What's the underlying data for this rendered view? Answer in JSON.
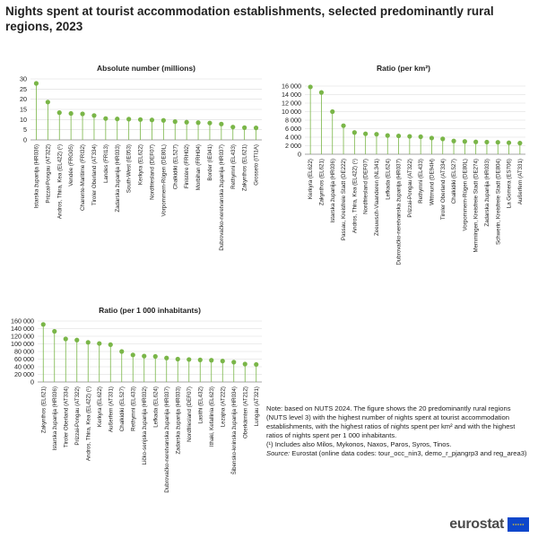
{
  "page": {
    "title": "Nights spent at tourist accommodation establishments, selected predominantly rural regions, 2023"
  },
  "colors": {
    "marker": "#7ab648",
    "stem": "#7ab648"
  },
  "chart_data": [
    {
      "type": "lollipop",
      "title": "Absolute number (millions)",
      "ylim": [
        0,
        30
      ],
      "yticks": [
        0,
        5,
        10,
        15,
        20,
        25,
        30
      ],
      "ytick_labels": [
        "0",
        "5",
        "10",
        "15",
        "20",
        "25",
        "30"
      ],
      "categories": [
        "Istarska županija (HR036)",
        "Prizzai-Pongau (AT322)",
        "Andros, Thira, Kea (EL422) (¹)",
        "Vendée (FRG05)",
        "Charente-Maritime (FRI32)",
        "Tiroler Oberland (AT334)",
        "Landes (FRI13)",
        "Zadarska županija (HR033)",
        "South-West (IE053)",
        "Kerkyra (EL622)",
        "Nordfriesland (DEF07)",
        "Vorpommern-Rügen (DE80L)",
        "Chalkidiki (EL527)",
        "Finistère (FRH02)",
        "Morbihan (FRH04)",
        "Border (IE041)",
        "Dubrovačko-neretvanska županija (HR037)",
        "Rethymni (EL433)",
        "Zakynthos (EL621)",
        "Grosseto (ITI1A)"
      ],
      "values": [
        27.8,
        18.6,
        13.4,
        13.0,
        12.8,
        12.0,
        10.5,
        10.3,
        10.2,
        10.0,
        9.8,
        9.6,
        9.0,
        8.7,
        8.5,
        8.3,
        7.8,
        6.3,
        6.0,
        5.9
      ]
    },
    {
      "type": "lollipop",
      "title": "Ratio (per km²)",
      "ylim": [
        0,
        16000
      ],
      "yticks": [
        0,
        2000,
        4000,
        6000,
        8000,
        10000,
        12000,
        14000,
        16000
      ],
      "ytick_labels": [
        "0",
        "2 000",
        "4 000",
        "6 000",
        "8 000",
        "10 000",
        "12 000",
        "14 000",
        "16 000"
      ],
      "categories": [
        "Kerkyra (EL622)",
        "Zakynthos (EL621)",
        "Istarska županija (HR036)",
        "Passau, Kreisfreie Stadt (DE222)",
        "Andros, Thira, Kea (EL422) (¹)",
        "Nordfriesland (DEF07)",
        "Zeeuwsch-Vlaanderen (NL341)",
        "Lefkada (EL624)",
        "Dubrovačko-neretvanska županija (HR037)",
        "Prizzai-Pongau (AT322)",
        "Rethymni (EL433)",
        "Wittmund (DE94H)",
        "Tiroler Oberland (AT334)",
        "Chalkidiki (EL527)",
        "Vorpommern-Rügen (DE80L)",
        "Memmingen, Kreisfreie Stadt (DE274)",
        "Zadarska županija (HR033)",
        "Schwerin, Kreisfreie Stadt (DE804)",
        "La Gomera (ES706)",
        "Außerfern (AT331)"
      ],
      "values": [
        15800,
        14500,
        10000,
        6700,
        5100,
        4800,
        4700,
        4400,
        4300,
        4200,
        4100,
        3800,
        3600,
        3100,
        3000,
        2900,
        2850,
        2800,
        2700,
        2600
      ]
    },
    {
      "type": "lollipop",
      "title": "Ratio (per 1 000 inhabitants)",
      "ylim": [
        0,
        160000
      ],
      "yticks": [
        0,
        20000,
        40000,
        60000,
        80000,
        100000,
        120000,
        140000,
        160000
      ],
      "ytick_labels": [
        "0",
        "20 000",
        "40 000",
        "60 000",
        "80 000",
        "100 000",
        "120 000",
        "140 000",
        "160 000"
      ],
      "categories": [
        "Zakynthos (EL621)",
        "Istarska županija (HR036)",
        "Tiroler Oberland (AT334)",
        "Prizzai-Pongau (AT322)",
        "Andros, Thira, Kea (EL422) (¹)",
        "Kerkyra (EL622)",
        "Außerfern (AT331)",
        "Chalkidiki (EL527)",
        "Rethymni (EL433)",
        "Ličko-senjska županija (HR032)",
        "Lefkada (EL624)",
        "Dubrovačko-neretvanska županija (HR037)",
        "Zadarska županija (HR033)",
        "Nordfriesland (DEF07)",
        "Lasithi (EL432)",
        "Ithaki, Kefallinia (EL623)",
        "Lezajna (AT222)",
        "Šibensko-kninska županija (HR034)",
        "Oberkärnten (AT212)",
        "Lungau (AT321)"
      ],
      "values": [
        151000,
        133000,
        113000,
        110000,
        104000,
        101000,
        98000,
        80000,
        71000,
        68000,
        67000,
        63000,
        60000,
        59000,
        58000,
        57000,
        55000,
        52000,
        47000,
        46000
      ]
    }
  ],
  "notes": {
    "line1": "Note: based on NUTS 2024. The figure shows the 20 predominantly rural regions (NUTS level 3) with the highest number of nights spent at tourist accommodation establishments, with the highest ratios of nights spent per km² and with the highest ratios of nights spent per 1 000 inhabitants.",
    "footnote": "(¹) Includes also Milos, Mykonos, Naxos, Paros, Syros, Tinos.",
    "source_label": "Source:",
    "source_text": " Eurostat (online data codes: tour_occ_nin3, demo_r_pjangrp3 and reg_area3)"
  },
  "logo": {
    "text": "eurostat"
  }
}
